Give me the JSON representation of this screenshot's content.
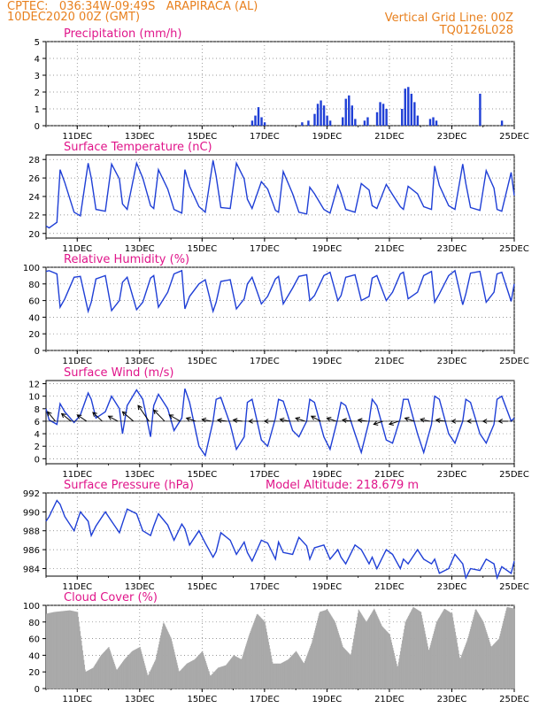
{
  "header": {
    "left_line1": "CPTEC:   036:34W-09:49S   ARAPIRACA (AL)",
    "left_line2": "10DEC2020 00Z (GMT)",
    "right_line1": "Vertical Grid Line: 00Z",
    "right_line2": "TQ0126L028"
  },
  "colors": {
    "title": "#e0158a",
    "header": "#e8801e",
    "series": "#1f3fd6",
    "cloud": "#a9a9a9",
    "wind_arrow": "#000000"
  },
  "x_axis": {
    "ticks": [
      "11DEC",
      "13DEC",
      "15DEC",
      "17DEC",
      "19DEC",
      "21DEC",
      "23DEC",
      "25DEC"
    ],
    "tick_days": [
      11,
      13,
      15,
      17,
      19,
      21,
      23,
      25
    ],
    "range_days": [
      10,
      25
    ]
  },
  "chart_data": [
    {
      "id": "precip",
      "type": "bar",
      "title": "Precipitation (mm/h)",
      "ylim": [
        0,
        5
      ],
      "yticks": [
        0,
        1,
        2,
        3,
        4,
        5
      ],
      "x": [
        16.6,
        16.7,
        16.8,
        16.9,
        17.0,
        18.2,
        18.4,
        18.6,
        18.7,
        18.8,
        18.9,
        19.0,
        19.1,
        19.5,
        19.6,
        19.7,
        19.8,
        19.9,
        20.2,
        20.3,
        20.6,
        20.7,
        20.8,
        20.9,
        21.4,
        21.5,
        21.6,
        21.7,
        21.8,
        21.9,
        22.3,
        22.4,
        22.5,
        23.9,
        24.6
      ],
      "values": [
        0.3,
        0.6,
        1.1,
        0.5,
        0.2,
        0.2,
        0.3,
        0.7,
        1.3,
        1.5,
        1.2,
        0.6,
        0.3,
        0.5,
        1.6,
        1.8,
        1.2,
        0.4,
        0.3,
        0.5,
        0.8,
        1.4,
        1.3,
        1.0,
        1.0,
        2.2,
        2.3,
        1.9,
        1.4,
        0.6,
        0.4,
        0.5,
        0.3,
        1.9,
        0.3
      ]
    },
    {
      "id": "temp",
      "type": "line",
      "title": "Surface Temperature (nC)",
      "ylim": [
        19.5,
        28.5
      ],
      "yticks": [
        20,
        22,
        24,
        26,
        28
      ],
      "x": [
        10,
        10.1,
        10.35,
        10.45,
        10.6,
        10.9,
        11.1,
        11.35,
        11.45,
        11.6,
        11.9,
        12.1,
        12.35,
        12.45,
        12.6,
        12.9,
        13.1,
        13.35,
        13.45,
        13.6,
        13.9,
        14.1,
        14.35,
        14.45,
        14.6,
        14.9,
        15.1,
        15.35,
        15.45,
        15.6,
        15.9,
        16.1,
        16.35,
        16.45,
        16.6,
        16.9,
        17.1,
        17.35,
        17.45,
        17.6,
        17.9,
        18.1,
        18.35,
        18.45,
        18.6,
        18.9,
        19.1,
        19.35,
        19.45,
        19.6,
        19.9,
        20.1,
        20.35,
        20.45,
        20.6,
        20.9,
        21.1,
        21.35,
        21.45,
        21.6,
        21.9,
        22.1,
        22.35,
        22.45,
        22.6,
        22.9,
        23.1,
        23.35,
        23.45,
        23.6,
        23.9,
        24.1,
        24.35,
        24.45,
        24.6,
        24.9,
        25
      ],
      "values": [
        20.8,
        20.6,
        21.2,
        26.9,
        25.5,
        22.3,
        21.9,
        27.6,
        26.0,
        22.6,
        22.4,
        27.5,
        25.9,
        23.2,
        22.6,
        27.6,
        26.0,
        23.0,
        22.7,
        26.9,
        24.8,
        22.6,
        22.2,
        26.9,
        25.1,
        22.9,
        22.3,
        27.9,
        26.2,
        22.8,
        22.7,
        27.6,
        25.9,
        23.7,
        22.7,
        25.6,
        24.8,
        22.5,
        22.3,
        26.7,
        24.3,
        22.3,
        22.1,
        25.0,
        24.3,
        22.6,
        22.2,
        25.2,
        24.3,
        22.6,
        22.3,
        25.4,
        24.7,
        23.0,
        22.7,
        25.3,
        24.2,
        22.9,
        22.6,
        25.1,
        24.3,
        22.9,
        22.6,
        27.3,
        25.2,
        23.0,
        22.6,
        27.5,
        25.4,
        22.8,
        22.5,
        26.8,
        24.9,
        22.6,
        22.4,
        26.6,
        24.1
      ]
    },
    {
      "id": "rh",
      "type": "line",
      "title": "Relative Humidity (%)",
      "ylim": [
        0,
        100
      ],
      "yticks": [
        0,
        20,
        40,
        60,
        80,
        100
      ],
      "x": [
        10,
        10.1,
        10.35,
        10.45,
        10.6,
        10.9,
        11.1,
        11.35,
        11.45,
        11.6,
        11.9,
        12.1,
        12.35,
        12.45,
        12.6,
        12.9,
        13.1,
        13.35,
        13.45,
        13.6,
        13.9,
        14.1,
        14.35,
        14.45,
        14.6,
        14.9,
        15.1,
        15.35,
        15.45,
        15.6,
        15.9,
        16.1,
        16.35,
        16.45,
        16.6,
        16.9,
        17.1,
        17.35,
        17.45,
        17.6,
        17.9,
        18.1,
        18.35,
        18.45,
        18.6,
        18.9,
        19.1,
        19.35,
        19.45,
        19.6,
        19.9,
        20.1,
        20.35,
        20.45,
        20.6,
        20.9,
        21.1,
        21.35,
        21.45,
        21.6,
        21.9,
        22.1,
        22.35,
        22.45,
        22.6,
        22.9,
        23.1,
        23.35,
        23.45,
        23.6,
        23.9,
        24.1,
        24.35,
        24.45,
        24.6,
        24.9,
        25
      ],
      "values": [
        95,
        96,
        92,
        52,
        62,
        88,
        89,
        47,
        58,
        86,
        90,
        48,
        60,
        82,
        88,
        49,
        58,
        87,
        90,
        52,
        70,
        92,
        96,
        50,
        65,
        80,
        85,
        47,
        58,
        83,
        85,
        50,
        62,
        80,
        88,
        56,
        65,
        86,
        89,
        56,
        75,
        89,
        91,
        60,
        66,
        90,
        94,
        60,
        66,
        88,
        91,
        60,
        65,
        87,
        90,
        60,
        70,
        92,
        94,
        62,
        70,
        90,
        95,
        58,
        68,
        90,
        96,
        55,
        68,
        93,
        95,
        58,
        70,
        92,
        94,
        59,
        80
      ]
    },
    {
      "id": "wind",
      "type": "line",
      "title": "Surface Wind (m/s)",
      "ylim": [
        -0.8,
        12.5
      ],
      "yticks": [
        0,
        2,
        4,
        6,
        8,
        10,
        12
      ],
      "x": [
        10,
        10.1,
        10.35,
        10.45,
        10.6,
        10.9,
        11.1,
        11.35,
        11.45,
        11.6,
        11.9,
        12.1,
        12.35,
        12.45,
        12.6,
        12.9,
        13.1,
        13.35,
        13.45,
        13.6,
        13.9,
        14.1,
        14.35,
        14.45,
        14.6,
        14.9,
        15.1,
        15.35,
        15.45,
        15.6,
        15.9,
        16.1,
        16.35,
        16.45,
        16.6,
        16.9,
        17.1,
        17.35,
        17.45,
        17.6,
        17.9,
        18.1,
        18.35,
        18.45,
        18.6,
        18.9,
        19.1,
        19.35,
        19.45,
        19.6,
        19.9,
        20.1,
        20.35,
        20.45,
        20.6,
        20.9,
        21.1,
        21.35,
        21.45,
        21.6,
        21.9,
        22.1,
        22.35,
        22.45,
        22.6,
        22.9,
        23.1,
        23.35,
        23.45,
        23.6,
        23.9,
        24.1,
        24.35,
        24.45,
        24.6,
        24.9,
        25
      ],
      "values": [
        8,
        6.2,
        5.5,
        8.8,
        7.5,
        5.8,
        7.0,
        10.5,
        9.5,
        6.5,
        7.5,
        10.0,
        8.0,
        4.0,
        8.5,
        11.0,
        9.5,
        3.5,
        8.5,
        10.3,
        8.0,
        4.5,
        6.5,
        11.2,
        9.0,
        2.0,
        0.5,
        6.0,
        9.5,
        9.8,
        5.5,
        1.5,
        3.5,
        9.0,
        9.5,
        3.0,
        2.0,
        6.5,
        9.5,
        9.2,
        4.5,
        3.5,
        6.0,
        9.5,
        9.0,
        3.5,
        1.5,
        6.5,
        9.0,
        8.5,
        4.0,
        1.0,
        6.0,
        9.5,
        8.5,
        3.0,
        2.5,
        6.5,
        9.5,
        9.5,
        4.0,
        1.0,
        5.5,
        10.0,
        9.5,
        4.0,
        2.5,
        6.0,
        9.5,
        9.0,
        4.0,
        2.5,
        5.5,
        9.5,
        10.0,
        6.0,
        6.5
      ],
      "arrows": {
        "description": "wind direction arrows along y=6",
        "x": [
          10.3,
          10.8,
          11.3,
          11.8,
          12.3,
          12.8,
          13.3,
          13.8,
          14.3,
          14.8,
          15.3,
          15.8,
          16.3,
          16.8,
          17.3,
          17.8,
          18.3,
          18.8,
          19.3,
          19.8,
          20.3,
          20.8,
          21.3,
          21.8,
          22.3,
          22.8,
          23.3,
          23.8,
          24.3,
          24.8
        ],
        "dx": [
          -0.25,
          -0.3,
          -0.3,
          -0.3,
          -0.3,
          -0.35,
          -0.35,
          -0.35,
          -0.35,
          -0.3,
          -0.3,
          -0.3,
          -0.3,
          -0.3,
          -0.3,
          -0.3,
          -0.3,
          -0.3,
          -0.3,
          -0.3,
          -0.3,
          -0.3,
          -0.3,
          -0.3,
          -0.3,
          -0.3,
          -0.3,
          -0.3,
          -0.3,
          -0.3
        ],
        "dy": [
          1.5,
          1.2,
          1.0,
          1.4,
          0.8,
          1.5,
          2.5,
          1.8,
          1.0,
          0.5,
          0.3,
          0.2,
          0.2,
          0,
          0,
          0.3,
          0.5,
          0.8,
          0.5,
          0.2,
          0.2,
          -0.5,
          -0.5,
          0.5,
          0.3,
          0.2,
          0,
          0,
          0,
          0
        ]
      }
    },
    {
      "id": "pressure",
      "type": "line",
      "title": "Surface Pressure (hPa)",
      "subtitle": "Model Altitude: 218.679 m",
      "ylim": [
        983.2,
        992
      ],
      "yticks": [
        984,
        986,
        988,
        990,
        992
      ],
      "x": [
        10,
        10.1,
        10.35,
        10.45,
        10.6,
        10.9,
        11.1,
        11.35,
        11.45,
        11.6,
        11.9,
        12.1,
        12.35,
        12.45,
        12.6,
        12.9,
        13.1,
        13.35,
        13.45,
        13.6,
        13.9,
        14.1,
        14.35,
        14.45,
        14.6,
        14.9,
        15.1,
        15.35,
        15.45,
        15.6,
        15.9,
        16.1,
        16.35,
        16.45,
        16.6,
        16.9,
        17.1,
        17.35,
        17.45,
        17.6,
        17.9,
        18.1,
        18.35,
        18.45,
        18.6,
        18.9,
        19.1,
        19.35,
        19.45,
        19.6,
        19.9,
        20.1,
        20.35,
        20.45,
        20.6,
        20.9,
        21.1,
        21.35,
        21.45,
        21.6,
        21.9,
        22.1,
        22.35,
        22.45,
        22.6,
        22.9,
        23.1,
        23.35,
        23.45,
        23.6,
        23.9,
        24.1,
        24.35,
        24.45,
        24.6,
        24.9,
        25
      ],
      "values": [
        989.0,
        989.5,
        991.2,
        990.8,
        989.5,
        988.0,
        990.0,
        989.0,
        987.5,
        988.5,
        990.0,
        989.0,
        987.8,
        988.8,
        990.3,
        989.8,
        988.0,
        987.5,
        988.5,
        989.8,
        988.6,
        987.0,
        988.7,
        988.2,
        986.5,
        988.0,
        986.7,
        985.2,
        985.8,
        987.8,
        987.0,
        985.5,
        986.8,
        985.7,
        984.8,
        987.0,
        986.7,
        985.0,
        986.8,
        985.7,
        985.5,
        987.3,
        986.4,
        985.0,
        986.2,
        986.5,
        985.0,
        986.0,
        985.2,
        984.5,
        986.5,
        986.0,
        984.5,
        985.2,
        984.0,
        986.0,
        985.5,
        984.0,
        985.0,
        984.5,
        986.0,
        985.0,
        984.5,
        985.0,
        983.5,
        984.0,
        985.5,
        984.5,
        983.0,
        984.0,
        983.8,
        985.0,
        984.5,
        983.0,
        984.2,
        983.5,
        984.8
      ]
    },
    {
      "id": "cloud",
      "type": "bar",
      "title": "Cloud Cover (%)",
      "ylim": [
        0,
        100
      ],
      "yticks": [
        0,
        20,
        40,
        60,
        80,
        100
      ],
      "x": [
        10,
        10.25,
        10.5,
        10.75,
        11,
        11.25,
        11.5,
        11.75,
        12,
        12.25,
        12.5,
        12.75,
        13,
        13.25,
        13.5,
        13.75,
        14,
        14.25,
        14.5,
        14.75,
        15,
        15.25,
        15.5,
        15.75,
        16,
        16.25,
        16.5,
        16.75,
        17,
        17.25,
        17.5,
        17.75,
        18,
        18.25,
        18.5,
        18.75,
        19,
        19.25,
        19.5,
        19.75,
        20,
        20.25,
        20.5,
        20.75,
        21,
        21.25,
        21.5,
        21.75,
        22,
        22.25,
        22.5,
        22.75,
        23,
        23.25,
        23.5,
        23.75,
        24,
        24.25,
        24.5,
        24.75,
        25
      ],
      "values": [
        90,
        92,
        93,
        94,
        92,
        20,
        25,
        40,
        50,
        22,
        35,
        45,
        50,
        15,
        35,
        80,
        60,
        20,
        30,
        35,
        45,
        15,
        25,
        28,
        40,
        35,
        65,
        90,
        80,
        30,
        30,
        35,
        45,
        30,
        55,
        92,
        95,
        80,
        50,
        40,
        95,
        80,
        96,
        75,
        65,
        25,
        80,
        98,
        92,
        45,
        80,
        96,
        90,
        35,
        60,
        96,
        80,
        50,
        60,
        98,
        96
      ]
    }
  ]
}
